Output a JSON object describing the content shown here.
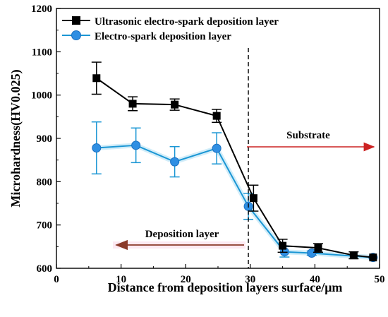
{
  "chart_data": {
    "type": "line",
    "xlabel": "Distance from deposition layers surface/μm",
    "ylabel": "Microhardness(HV0.025)",
    "xlim": [
      0,
      50
    ],
    "ylim": [
      600,
      1200
    ],
    "xticks": [
      0,
      10,
      20,
      30,
      40,
      50
    ],
    "yticks": [
      600,
      700,
      800,
      900,
      1000,
      1100,
      1200
    ],
    "grid": false,
    "legend_position": "top-left",
    "series": [
      {
        "name": "Ultrasonic electro-spark deposition layer",
        "color": "#000000",
        "marker": "square",
        "x": [
          6.2,
          11.8,
          18.3,
          24.8,
          30.5,
          35.0,
          40.5,
          46.0,
          49.0
        ],
        "y": [
          1039,
          980,
          978,
          952,
          762,
          652,
          647,
          630,
          625
        ],
        "err": [
          37,
          16,
          13,
          15,
          30,
          15,
          10,
          8,
          0
        ]
      },
      {
        "name": "Electro-spark deposition layer",
        "color": "#1a96d4",
        "marker": "circle",
        "x": [
          6.2,
          12.3,
          18.3,
          24.8,
          29.7,
          35.3,
          39.5,
          49.0
        ],
        "y": [
          878,
          884,
          846,
          877,
          743,
          638,
          635,
          625
        ],
        "err": [
          60,
          40,
          35,
          36,
          30,
          12,
          5,
          0
        ]
      }
    ],
    "annotations": {
      "boundary_x": 29.7,
      "substrate_label": "Substrate",
      "deposition_label": "Deposition layer",
      "arrow_color": "#cc2222"
    }
  }
}
